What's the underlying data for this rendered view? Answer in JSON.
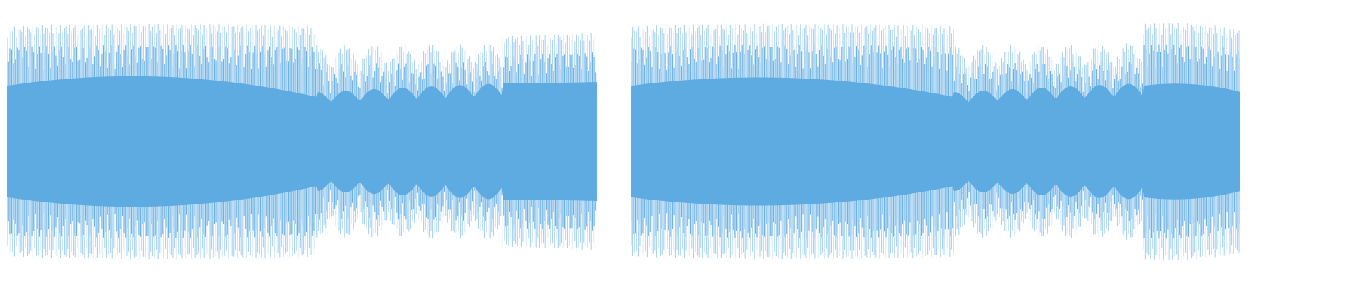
{
  "colors": {
    "background": "#ffffff",
    "waveform_peak": "#a9d3f1",
    "waveform_rms": "#5eabe1"
  },
  "clips": [
    {
      "id": "clip-1",
      "segments": [
        {
          "start": 0.0,
          "end": 0.525,
          "peak_start": 0.93,
          "peak_end": 0.93,
          "peak_mid": 0.97,
          "rms_start": 0.45,
          "rms_end": 0.36,
          "rms_mid": 0.64,
          "modulation": 0
        },
        {
          "start": 0.525,
          "end": 0.84,
          "peak_start": 0.78,
          "peak_end": 0.8,
          "peak_mid": 0.78,
          "rms_start": 0.4,
          "rms_end": 0.47,
          "rms_mid": 0.44,
          "modulation": 0.22
        },
        {
          "start": 0.84,
          "end": 1.0,
          "peak_start": 0.85,
          "peak_end": 0.88,
          "peak_mid": 0.86,
          "rms_start": 0.47,
          "rms_end": 0.48,
          "rms_mid": 0.47,
          "modulation": 0
        }
      ]
    },
    {
      "id": "clip-2",
      "segments": [
        {
          "start": 0.0,
          "end": 0.53,
          "peak_start": 0.93,
          "peak_end": 0.93,
          "peak_mid": 0.97,
          "rms_start": 0.45,
          "rms_end": 0.36,
          "rms_mid": 0.62,
          "modulation": 0
        },
        {
          "start": 0.53,
          "end": 0.84,
          "peak_start": 0.78,
          "peak_end": 0.8,
          "peak_mid": 0.78,
          "rms_start": 0.4,
          "rms_end": 0.47,
          "rms_mid": 0.44,
          "modulation": 0.22
        },
        {
          "start": 0.84,
          "end": 1.0,
          "peak_start": 0.95,
          "peak_end": 0.9,
          "peak_mid": 0.98,
          "rms_start": 0.45,
          "rms_end": 0.4,
          "rms_mid": 0.5,
          "modulation": 0
        }
      ]
    }
  ]
}
